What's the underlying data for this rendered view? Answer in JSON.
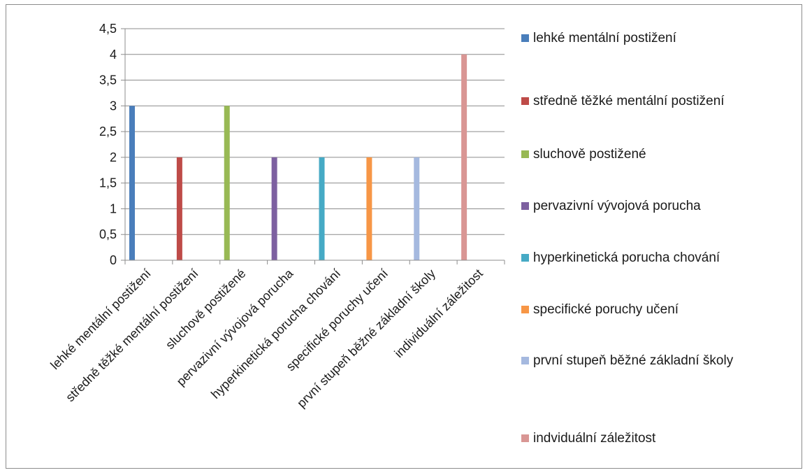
{
  "chart_data": {
    "type": "bar",
    "title": "",
    "xlabel": "",
    "ylabel": "",
    "ylim": [
      0,
      4.5
    ],
    "yticks": [
      "0",
      "0,5",
      "1",
      "1,5",
      "2",
      "2,5",
      "3",
      "3,5",
      "4",
      "4,5"
    ],
    "grid": true,
    "legend_position": "right",
    "categories": [
      "lehké mentální postižení",
      "středně těžké mentální postižení",
      "sluchově postižené",
      "pervazivní vývojová porucha",
      "hyperkinetická porucha chování",
      "specifické poruchy učení",
      "první stupeň běžné základní školy",
      "individuální záležitost"
    ],
    "values": [
      3,
      2,
      3,
      2,
      2,
      2,
      2,
      4
    ],
    "colors": [
      "#4a7ebb",
      "#be4b48",
      "#98b954",
      "#7d60a0",
      "#46aac5",
      "#f79646",
      "#a5b9df",
      "#d99694"
    ],
    "legend": [
      "lehké mentální postižení",
      "středně těžké mentální postižení",
      "sluchově postižené",
      "pervazivní vývojová porucha",
      "hyperkinetická porucha chování",
      "specifické poruchy učení",
      "první stupeň běžné základní školy",
      "indviduální záležitost"
    ]
  }
}
